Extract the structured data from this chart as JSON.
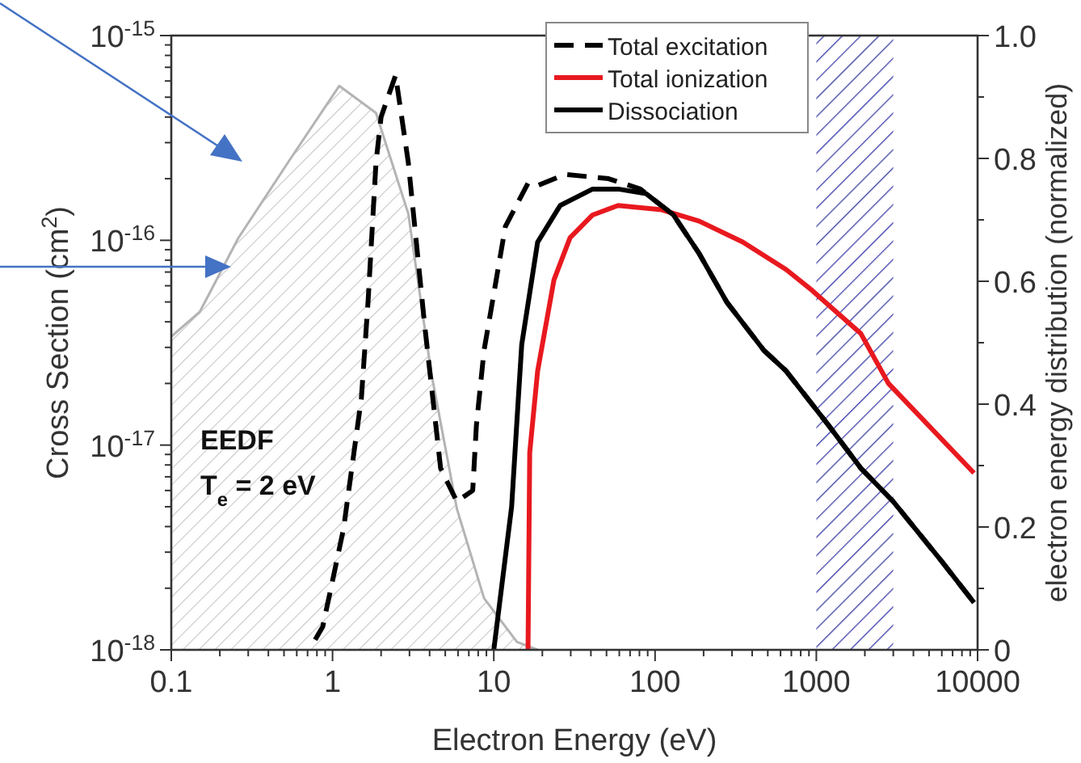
{
  "chart_data": {
    "type": "line",
    "xlabel": "Electron Energy (eV)",
    "ylabel": "Cross Section (cm$^{2}$)",
    "y2label": "electron energy distribution (normalized)",
    "log": "xy",
    "legend": "top right",
    "xlim": [
      0.1,
      10000
    ],
    "xticks": [
      0.1,
      {
        "value": 0.2,
        "label": null
      },
      {
        "value": 0.3,
        "label": null
      },
      {
        "value": 0.4,
        "label": null
      },
      {
        "value": 0.5,
        "label": null
      },
      {
        "value": 0.6,
        "label": null
      },
      {
        "value": 0.7,
        "label": null
      },
      {
        "value": 0.8,
        "label": null
      },
      {
        "value": 0.9,
        "label": null
      },
      1,
      {
        "value": 2,
        "label": null
      },
      {
        "value": 3,
        "label": null
      },
      {
        "value": 4,
        "label": null
      },
      {
        "value": 5,
        "label": null
      },
      {
        "value": 6,
        "label": null
      },
      {
        "value": 7,
        "label": null
      },
      {
        "value": 8,
        "label": null
      },
      {
        "value": 9,
        "label": null
      },
      10,
      {
        "value": 20,
        "label": null
      },
      {
        "value": 30,
        "label": null
      },
      {
        "value": 40,
        "label": null
      },
      {
        "value": 50,
        "label": null
      },
      {
        "value": 60,
        "label": null
      },
      {
        "value": 70,
        "label": null
      },
      {
        "value": 80,
        "label": null
      },
      {
        "value": 90,
        "label": null
      },
      100,
      {
        "value": 200,
        "label": null
      },
      {
        "value": 300,
        "label": null
      },
      {
        "value": 400,
        "label": null
      },
      {
        "value": 500,
        "label": null
      },
      {
        "value": 600,
        "label": null
      },
      {
        "value": 700,
        "label": null
      },
      {
        "value": 800,
        "label": null
      },
      {
        "value": 900,
        "label": null
      },
      1000,
      {
        "value": 2000,
        "label": null
      },
      {
        "value": 3000,
        "label": null
      },
      {
        "value": 4000,
        "label": null
      },
      {
        "value": 5000,
        "label": null
      },
      {
        "value": 6000,
        "label": null
      },
      {
        "value": 7000,
        "label": null
      },
      {
        "value": 8000,
        "label": null
      },
      {
        "value": 9000,
        "label": null
      },
      10000
    ],
    "ylim": [
      1e-18,
      1e-15
    ],
    "yticks": [
      {
        "value": 1e-18,
        "label": "10$^{-18}$"
      },
      {
        "value": 2e-18,
        "label": null
      },
      {
        "value": 3e-18,
        "label": null
      },
      {
        "value": 4e-18,
        "label": null
      },
      {
        "value": 5e-18,
        "label": null
      },
      {
        "value": 6e-18,
        "label": null
      },
      {
        "value": 7e-18,
        "label": null
      },
      {
        "value": 8e-18,
        "label": null
      },
      {
        "value": 9e-18,
        "label": null
      },
      {
        "value": 1e-17,
        "label": "10$^{-17}$"
      },
      {
        "value": 2e-17,
        "label": null
      },
      {
        "value": 3e-17,
        "label": null
      },
      {
        "value": 4e-17,
        "label": null
      },
      {
        "value": 5e-17,
        "label": null
      },
      {
        "value": 6e-17,
        "label": null
      },
      {
        "value": 7e-17,
        "label": null
      },
      {
        "value": 8e-17,
        "label": null
      },
      {
        "value": 9e-17,
        "label": null
      },
      {
        "value": 1e-16,
        "label": "10$^{-16}$"
      },
      {
        "value": 2e-16,
        "label": null
      },
      {
        "value": 3e-16,
        "label": null
      },
      {
        "value": 4e-16,
        "label": null
      },
      {
        "value": 5e-16,
        "label": null
      },
      {
        "value": 6e-16,
        "label": null
      },
      {
        "value": 7e-16,
        "label": null
      },
      {
        "value": 8e-16,
        "label": null
      },
      {
        "value": 9e-16,
        "label": null
      },
      {
        "value": 1e-15,
        "label": "10$^{-15}$"
      }
    ],
    "y2lim": [
      0,
      1
    ],
    "y2ticks": [
      0,
      {
        "value": 0.1,
        "label": null
      },
      0.2,
      {
        "value": 0.3,
        "label": null
      },
      0.4,
      {
        "value": 0.5,
        "label": null
      },
      0.6,
      {
        "value": 0.7,
        "label": null
      },
      0.8,
      {
        "value": 0.9,
        "label": null
      },
      {
        "value": 1,
        "label": "1.0"
      }
    ],
    "bands": [
      {
        "axis": "x",
        "from": 1000,
        "to": 3000,
        "color": "#3c3ca8"
      }
    ],
    "annotations": [
      "EEDF",
      "T$_{e}$ = 2 eV"
    ],
    "series": [
      {
        "type": "area",
        "axis": "y2",
        "color": "#b4b4b4",
        "x": [
          0.1,
          0.15,
          0.26,
          0.55,
          1.1,
          1.86,
          2.95,
          3.7,
          4.1,
          5.9,
          8.7,
          13.9,
          18.7
        ],
        "values": [
          0.51,
          0.55,
          0.67,
          0.8,
          0.918,
          0.874,
          0.71,
          0.53,
          0.45,
          0.23,
          0.084,
          0.013,
          0
        ]
      },
      {
        "name": "Total excitation",
        "color": "#000000",
        "line_style": "dashed",
        "x": [
          0.78,
          0.87,
          1.17,
          1.51,
          1.66,
          1.86,
          2.0,
          2.46,
          2.95,
          3.72,
          4.68,
          5.9,
          7.4,
          7.8,
          8.7,
          11.8,
          16.3,
          18.7,
          27.6,
          51.5,
          81,
          130,
          188,
          278,
          473,
          650,
          1190,
          1890,
          3000,
          6000,
          9500
        ],
        "values": [
          1.12e-18,
          1.3e-18,
          3.9e-18,
          1.7e-17,
          5e-17,
          2.4e-16,
          4e-16,
          6.4e-16,
          2.4e-16,
          3.9e-17,
          7.7e-18,
          5.3e-18,
          6e-18,
          1.25e-17,
          2.9e-17,
          1.17e-16,
          1.9e-16,
          1.85e-16,
          2.1e-16,
          2e-16,
          1.78e-16,
          1.33e-16,
          8.6e-17,
          5e-17,
          2.9e-17,
          2.3e-17,
          1.25e-17,
          7.7e-18,
          5.3e-18,
          2.7e-18,
          1.7e-18
        ]
      },
      {
        "name": "Total ionization",
        "color": "#e8191f",
        "x": [
          16.3,
          16.7,
          18.7,
          23.6,
          29.7,
          41,
          59,
          110,
          188,
          350,
          650,
          940,
          1890,
          2800,
          9500
        ],
        "values": [
          1e-18,
          9.2e-18,
          2.3e-17,
          6.4e-17,
          1.03e-16,
          1.33e-16,
          1.48e-16,
          1.41e-16,
          1.24e-16,
          9.8e-17,
          7.2e-17,
          5.7e-17,
          3.5e-17,
          2e-17,
          7.3e-18
        ]
      },
      {
        "name": "Dissociation",
        "color": "#000000",
        "x": [
          10,
          12.9,
          14.2,
          14.9,
          18.7,
          25.8,
          41,
          59,
          88,
          130,
          188,
          278,
          473,
          650,
          1190,
          1890,
          3000,
          6000,
          9500
        ],
        "values": [
          1e-18,
          5e-18,
          1.7e-17,
          3.1e-17,
          9.8e-17,
          1.48e-16,
          1.78e-16,
          1.78e-16,
          1.69e-16,
          1.33e-16,
          8.6e-17,
          5e-17,
          2.9e-17,
          2.3e-17,
          1.25e-17,
          7.7e-18,
          5.3e-18,
          2.7e-18,
          1.7e-18
        ]
      }
    ]
  }
}
